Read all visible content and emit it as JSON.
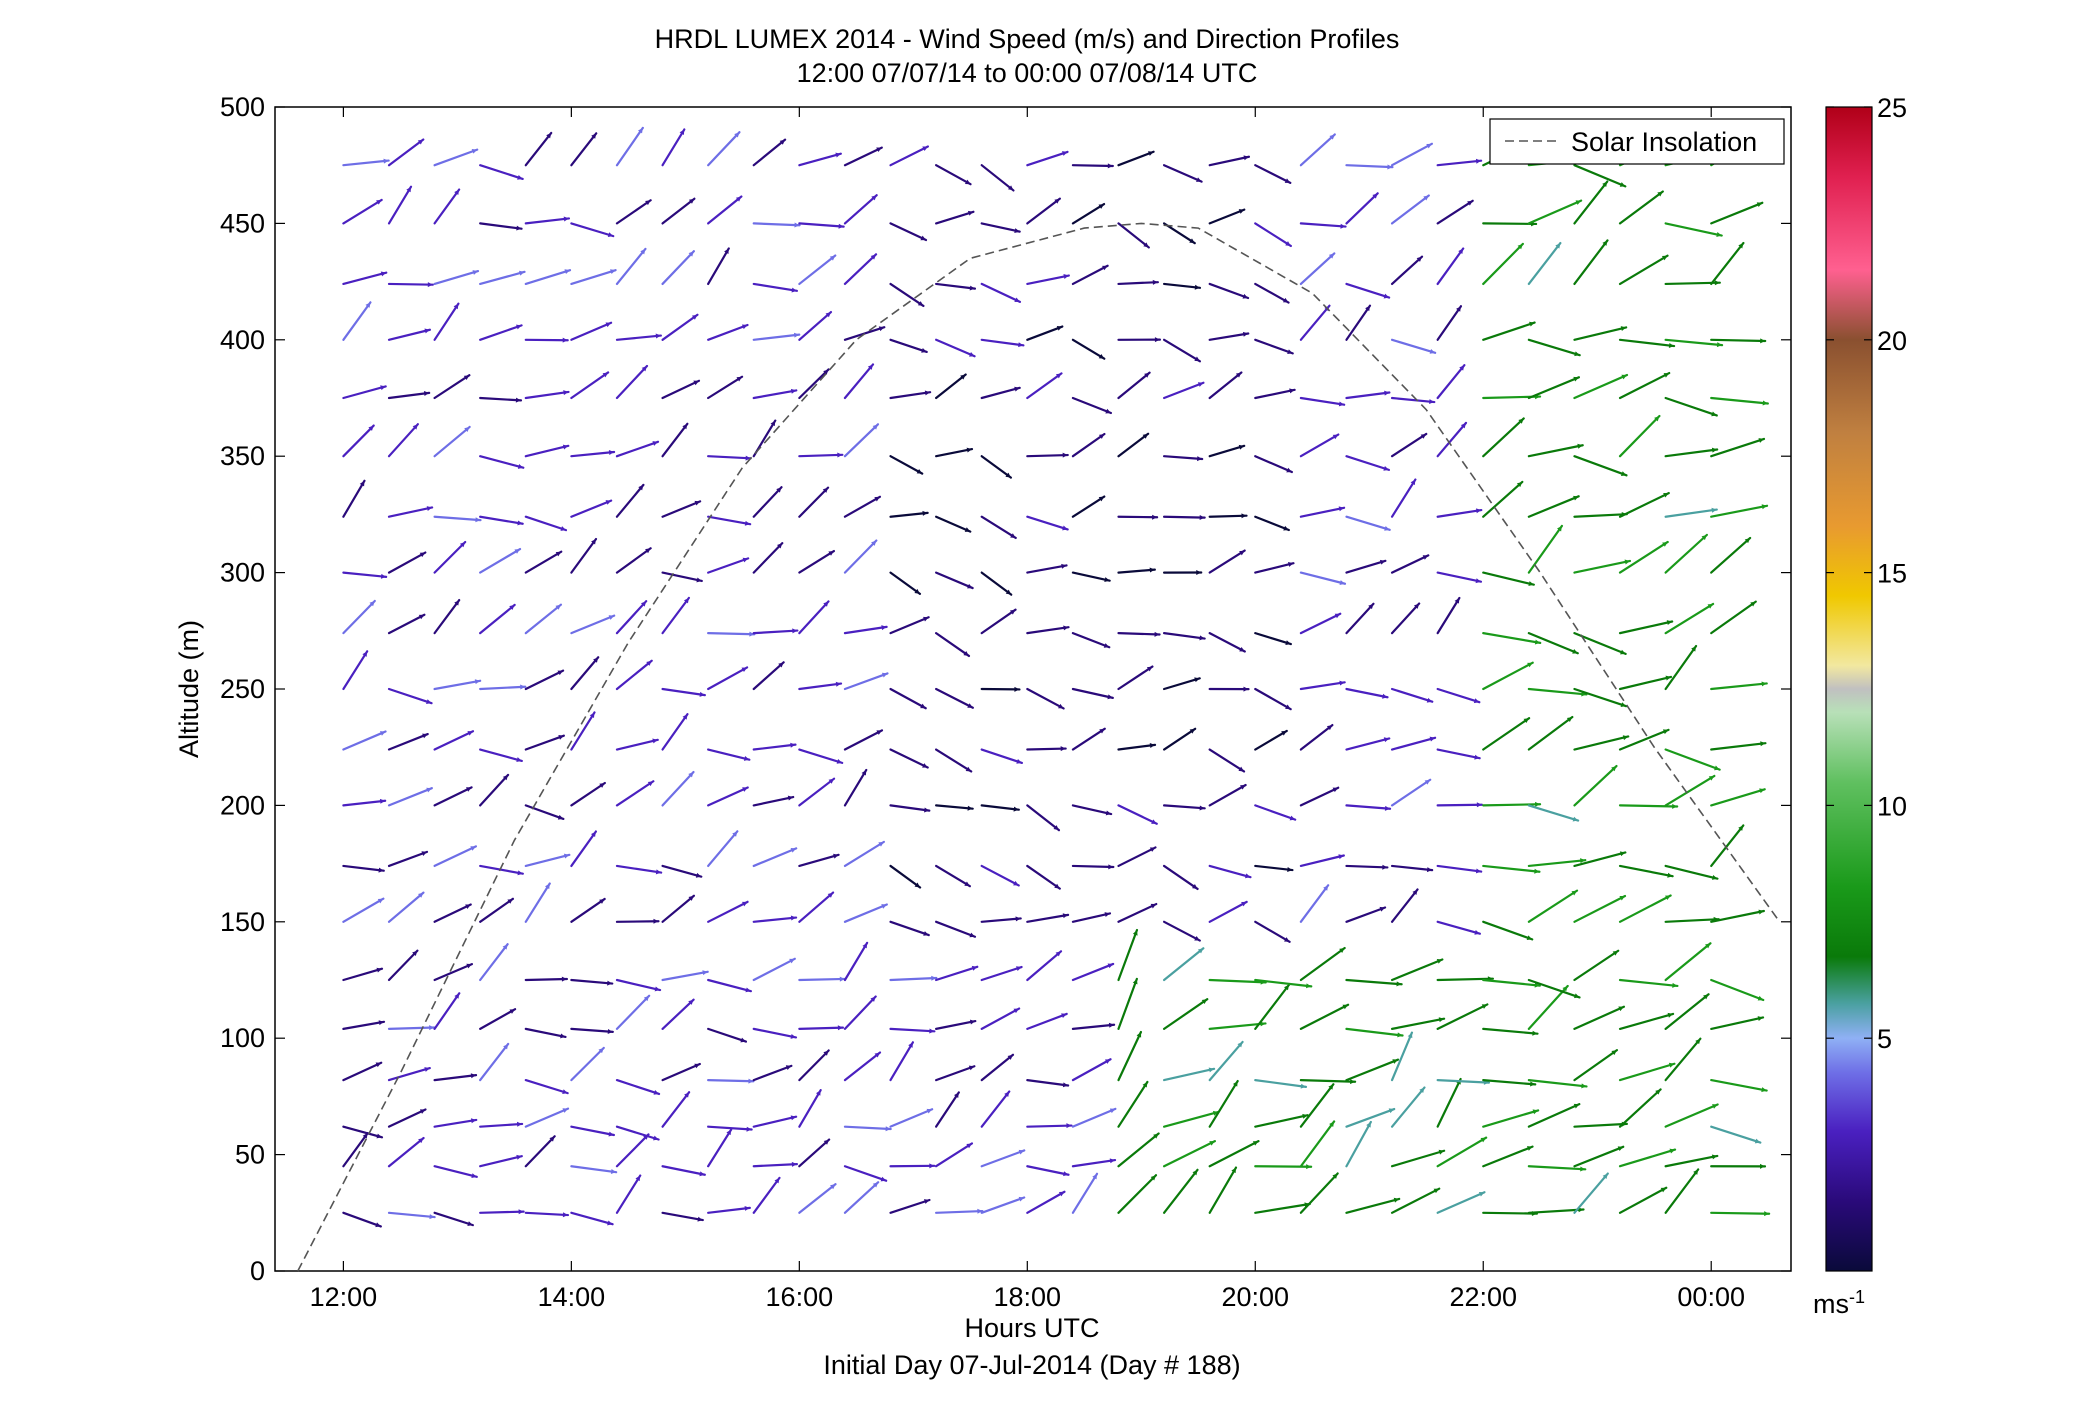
{
  "chart_data": {
    "type": "quiver",
    "title": "HRDL LUMEX 2014 - Wind Speed (m/s) and Direction Profiles",
    "subtitle": "12:00 07/07/14 to 00:00 07/08/14  UTC",
    "xlabel": "Hours UTC",
    "xlabel2": "Initial Day 07-Jul-2014 (Day # 188)",
    "ylabel": "Altitude (m)",
    "x_tick_labels": [
      "12:00",
      "14:00",
      "16:00",
      "18:00",
      "20:00",
      "22:00",
      "00:00"
    ],
    "x_tick_hours": [
      12,
      14,
      16,
      18,
      20,
      22,
      24
    ],
    "xlim_hours": [
      11.4,
      24.7
    ],
    "y_ticks": [
      0,
      50,
      100,
      150,
      200,
      250,
      300,
      350,
      400,
      450,
      500
    ],
    "ylim": [
      0,
      500
    ],
    "colorbar": {
      "ticks": [
        5,
        10,
        15,
        20,
        25
      ],
      "range": [
        0,
        25
      ],
      "unit": "ms",
      "unit_exponent": "-1"
    },
    "legend": {
      "entries": [
        "Solar Insolation"
      ],
      "placement": "top-right"
    },
    "solar_insolation": {
      "hours": [
        11.6,
        12.5,
        13.5,
        14.5,
        15.5,
        16.5,
        17.5,
        18.5,
        19.0,
        19.5,
        20.5,
        21.5,
        22.5,
        23.5,
        24.6
      ],
      "altitude": [
        0,
        85,
        185,
        270,
        345,
        400,
        435,
        448,
        450,
        448,
        420,
        370,
        300,
        225,
        150
      ]
    },
    "wind_field": {
      "altitudes": [
        25,
        45,
        62,
        82,
        104,
        125,
        150,
        174,
        200,
        224,
        250,
        274,
        300,
        324,
        350,
        375,
        400,
        424,
        450,
        475
      ],
      "hours": [
        12.0,
        12.4,
        12.8,
        13.2,
        13.6,
        14.0,
        14.4,
        14.8,
        15.2,
        15.6,
        16.0,
        16.4,
        16.8,
        17.2,
        17.6,
        18.0,
        18.4,
        18.8,
        19.2,
        19.6,
        20.0,
        20.4,
        20.8,
        21.2,
        21.6,
        22.0,
        22.4,
        22.8,
        23.2,
        23.6,
        24.0
      ],
      "note_regimes": [
        {
          "hours": [
            11.8,
            16.6
          ],
          "altitudes": [
            0,
            500
          ],
          "speed": 3.5,
          "dir_deg": 20
        },
        {
          "hours": [
            16.6,
            20.2
          ],
          "altitudes": [
            140,
            500
          ],
          "speed": 2.0,
          "dir_deg": 0
        },
        {
          "hours": [
            18.6,
            22.0
          ],
          "altitudes": [
            0,
            140
          ],
          "speed": 7.5,
          "dir_deg": 30
        },
        {
          "hours": [
            22.0,
            24.3
          ],
          "altitudes": [
            0,
            500
          ],
          "speed": 8.0,
          "dir_deg": 15
        }
      ]
    }
  }
}
